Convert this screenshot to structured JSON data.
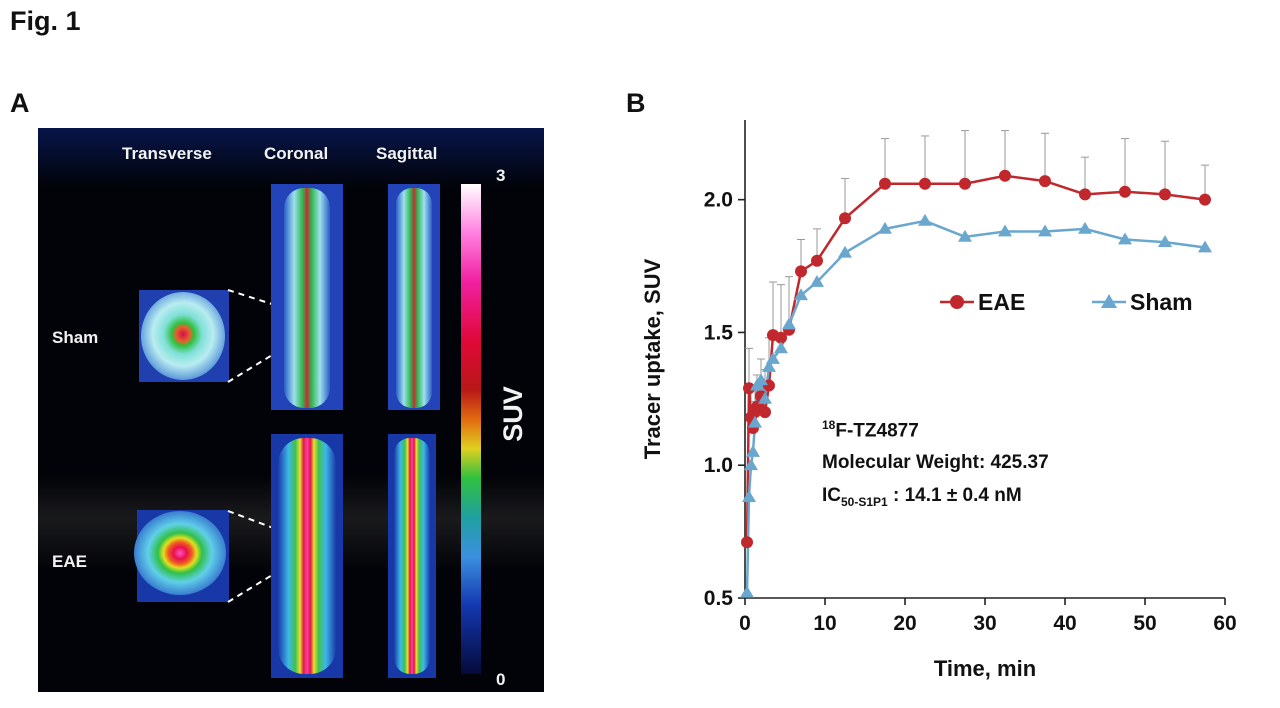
{
  "figure": {
    "title": "Fig. 1",
    "panel_a_label": "A",
    "panel_b_label": "B"
  },
  "panel_a": {
    "views": [
      "Transverse",
      "Coronal",
      "Sagittal"
    ],
    "rows": [
      "Sham",
      "EAE"
    ],
    "colorbar": {
      "title": "SUV",
      "max_label": "3",
      "min_label": "0"
    }
  },
  "annotation": {
    "isotope_sup": "18",
    "compound": "F-TZ4877",
    "molecular_weight": "Molecular Weight: 425.37",
    "ic50_prefix": "IC",
    "ic50_sub": "50-S1P1",
    "ic50_value": " : 14.1 ± 0.4 nM"
  },
  "chart_data": {
    "type": "line",
    "xlabel": "Time, min",
    "ylabel": "Tracer uptake, SUV",
    "xlim": [
      0,
      60
    ],
    "ylim": [
      0.5,
      2.3
    ],
    "xticks": [
      0,
      10,
      20,
      30,
      40,
      50,
      60
    ],
    "yticks": [
      0.5,
      1.0,
      1.5,
      2.0
    ],
    "ytick_labels": [
      "0.5",
      "1.0",
      "1.5",
      "2.0"
    ],
    "legend_position": "right-middle",
    "series": [
      {
        "name": "EAE",
        "color": "#c0282d",
        "marker": "circle",
        "x": [
          0.25,
          0.5,
          0.75,
          1.0,
          1.25,
          1.5,
          2.0,
          2.5,
          3.0,
          3.5,
          4.5,
          5.5,
          7.0,
          9.0,
          12.5,
          17.5,
          22.5,
          27.5,
          32.5,
          37.5,
          42.5,
          47.5,
          52.5,
          57.5
        ],
        "y": [
          0.71,
          1.29,
          1.18,
          1.14,
          1.2,
          1.22,
          1.26,
          1.2,
          1.3,
          1.49,
          1.48,
          1.51,
          1.73,
          1.77,
          1.93,
          2.06,
          2.06,
          2.06,
          2.09,
          2.07,
          2.02,
          2.03,
          2.02,
          2.0
        ],
        "error": [
          0.0,
          0.15,
          0.12,
          0.1,
          0.1,
          0.12,
          0.14,
          0.16,
          0.18,
          0.2,
          0.2,
          0.2,
          0.12,
          0.12,
          0.15,
          0.17,
          0.18,
          0.2,
          0.17,
          0.18,
          0.14,
          0.2,
          0.2,
          0.13
        ]
      },
      {
        "name": "Sham",
        "color": "#6aa7cf",
        "marker": "triangle",
        "x": [
          0.25,
          0.5,
          0.75,
          1.0,
          1.25,
          1.5,
          2.0,
          2.5,
          3.0,
          3.5,
          4.5,
          5.5,
          7.0,
          9.0,
          12.5,
          17.5,
          22.5,
          27.5,
          32.5,
          37.5,
          42.5,
          47.5,
          52.5,
          57.5
        ],
        "y": [
          0.52,
          0.88,
          1.0,
          1.05,
          1.16,
          1.3,
          1.32,
          1.25,
          1.37,
          1.4,
          1.44,
          1.53,
          1.64,
          1.69,
          1.8,
          1.89,
          1.92,
          1.86,
          1.88,
          1.88,
          1.89,
          1.85,
          1.84,
          1.82
        ]
      }
    ]
  }
}
